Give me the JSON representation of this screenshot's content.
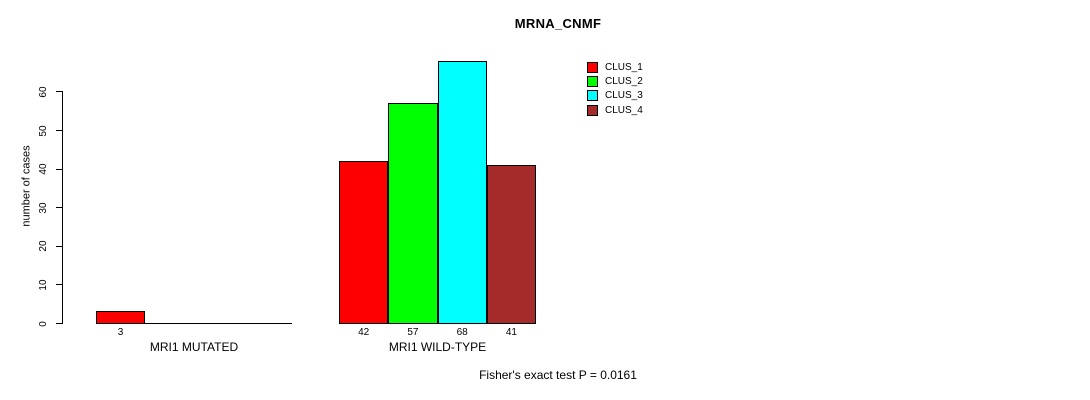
{
  "chart_data": {
    "type": "bar",
    "title": "MRNA_CNMF",
    "ylabel": "number of cases",
    "ylim": [
      0,
      60
    ],
    "yticks": [
      0,
      10,
      20,
      30,
      40,
      50,
      60
    ],
    "grid": false,
    "legend_position": "top-right-inside",
    "groups": [
      {
        "label": "MRI1 MUTATED",
        "bars": [
          {
            "cluster": "CLUS_1",
            "value": 3,
            "color": "#FF0000"
          }
        ]
      },
      {
        "label": "MRI1 WILD-TYPE",
        "bars": [
          {
            "cluster": "CLUS_1",
            "value": 42,
            "color": "#FF0000"
          },
          {
            "cluster": "CLUS_2",
            "value": 57,
            "color": "#00FF00"
          },
          {
            "cluster": "CLUS_3",
            "value": 68,
            "color": "#00FFFF"
          },
          {
            "cluster": "CLUS_4",
            "value": 41,
            "color": "#A52A2A"
          }
        ]
      }
    ],
    "legend": [
      {
        "label": "CLUS_1",
        "color": "#FF0000"
      },
      {
        "label": "CLUS_2",
        "color": "#00FF00"
      },
      {
        "label": "CLUS_3",
        "color": "#00FFFF"
      },
      {
        "label": "CLUS_4",
        "color": "#A52A2A"
      }
    ],
    "annotation": "Fisher's exact test P = 0.0161"
  },
  "colors": {
    "background": "#FFFFFF",
    "axis": "#000000",
    "text": "#000000",
    "bar_border": "#000000"
  }
}
